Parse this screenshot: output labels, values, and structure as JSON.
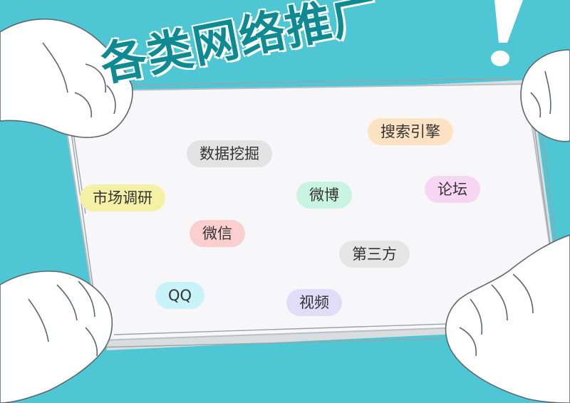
{
  "headline": "各类网络推广",
  "exclamation": "!",
  "colors": {
    "background": "#4fc6d3",
    "board": "#f7f7f9",
    "title": "#0e8a93"
  },
  "tags": [
    {
      "label": "搜索引擎",
      "color": "#fde3c4"
    },
    {
      "label": "数据挖掘",
      "color": "#e3e3e3"
    },
    {
      "label": "市场调研",
      "color": "#f4f1a6"
    },
    {
      "label": "微博",
      "color": "#c9f3e2"
    },
    {
      "label": "论坛",
      "color": "#f6d6f3"
    },
    {
      "label": "微信",
      "color": "#fbcfcf"
    },
    {
      "label": "第三方",
      "color": "#e6e6e6"
    },
    {
      "label": "QQ",
      "color": "#c8f3f8"
    },
    {
      "label": "视频",
      "color": "#e1dcf7"
    }
  ]
}
